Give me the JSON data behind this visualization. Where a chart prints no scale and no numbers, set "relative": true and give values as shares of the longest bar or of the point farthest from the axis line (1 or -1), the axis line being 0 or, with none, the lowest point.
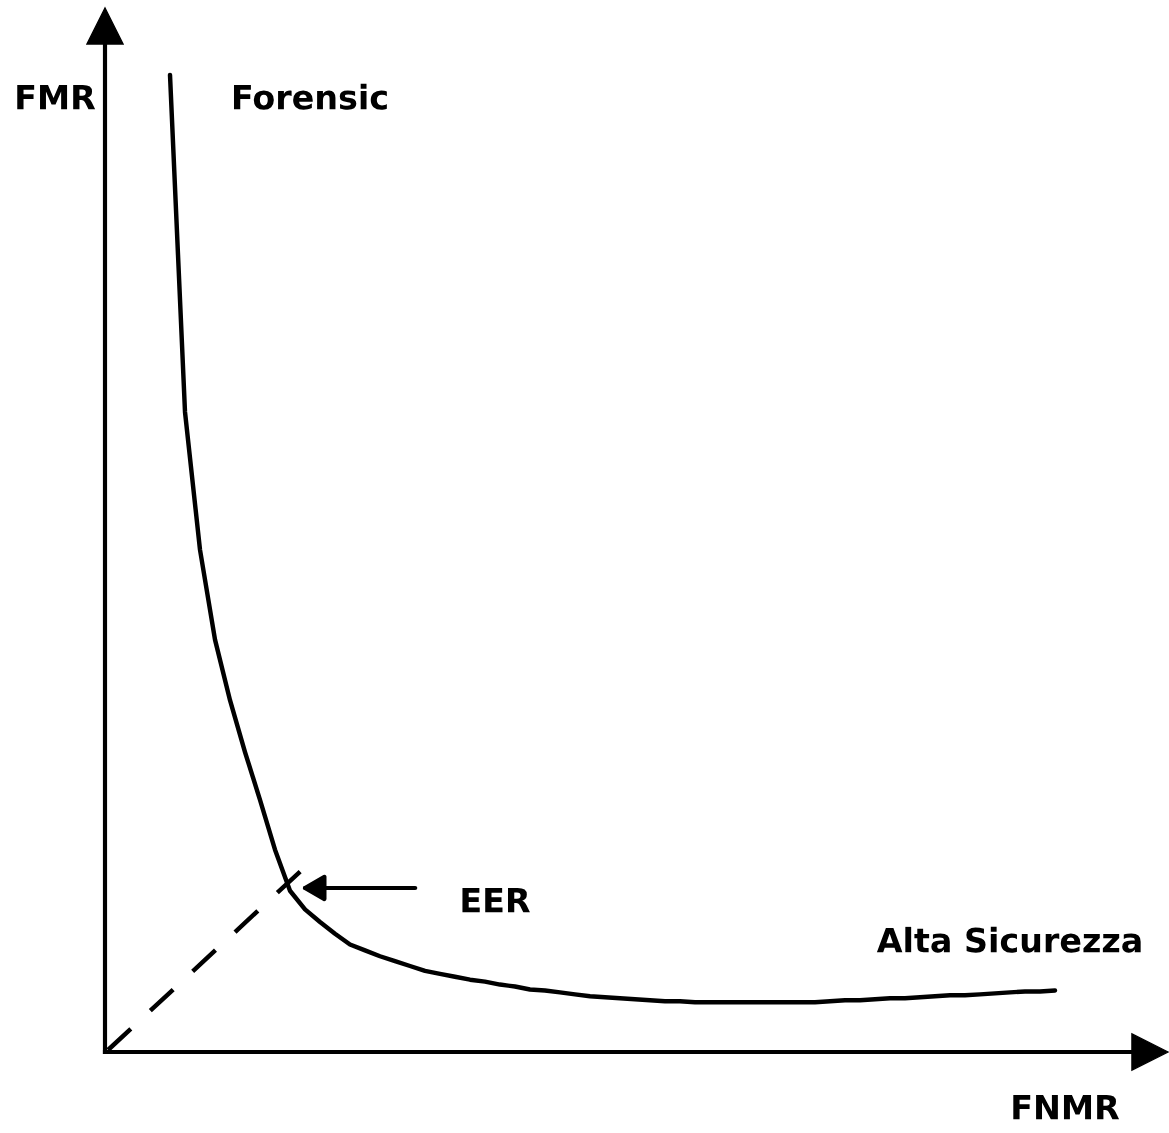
{
  "chart_data": {
    "type": "line",
    "relative": true,
    "xlabel": "FNMR",
    "ylabel": "FMR",
    "categories": [
      null,
      null,
      null,
      null,
      null,
      null,
      null,
      null,
      null,
      null,
      null,
      null,
      null,
      null,
      null,
      null,
      null,
      null,
      null,
      null,
      null,
      null,
      null,
      null,
      null,
      null,
      null,
      null,
      null,
      null,
      null,
      null,
      null,
      null,
      null,
      null,
      null,
      null,
      null,
      null,
      null,
      null,
      null,
      null,
      null,
      null,
      null,
      null,
      null,
      null,
      null,
      null,
      null,
      null,
      null,
      null,
      null,
      null,
      null,
      null
    ],
    "series": [
      {
        "color": "#000000",
        "line_style": "solid",
        "values": [
          1.0,
          0.655,
          0.514,
          0.422,
          0.36,
          0.307,
          0.258,
          0.207,
          0.165,
          0.146,
          0.133,
          0.121,
          0.11,
          0.104,
          0.098,
          0.093,
          0.088,
          0.083,
          0.08,
          0.077,
          0.074,
          0.072,
          0.069,
          0.067,
          0.064,
          0.063,
          0.061,
          0.059,
          0.057,
          0.056,
          0.055,
          0.054,
          0.053,
          0.052,
          0.052,
          0.051,
          0.051,
          0.051,
          0.051,
          0.051,
          0.051,
          0.051,
          0.051,
          0.051,
          0.052,
          0.053,
          0.053,
          0.054,
          0.055,
          0.055,
          0.056,
          0.057,
          0.058,
          0.058,
          0.059,
          0.06,
          0.061,
          0.062,
          0.062,
          0.063
        ]
      }
    ],
    "annotations": [
      "Forensic",
      "EER",
      "Alta Sicurezza"
    ]
  }
}
